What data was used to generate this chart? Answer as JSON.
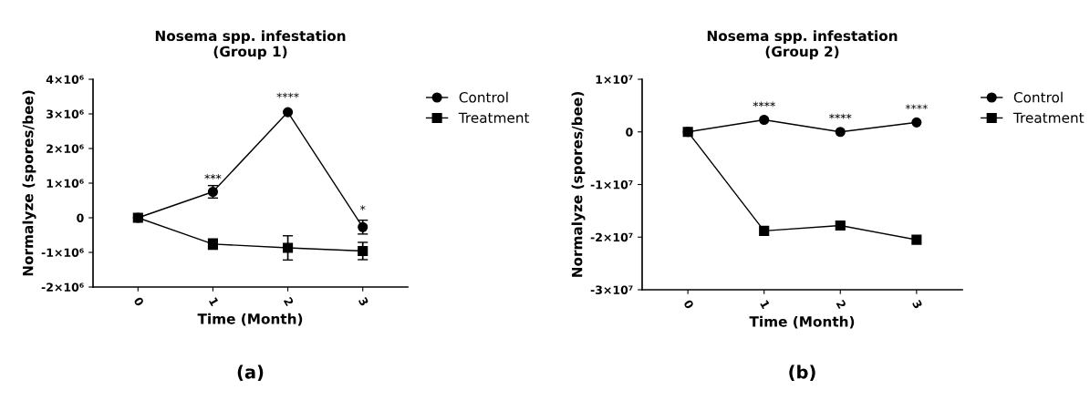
{
  "chart_data": [
    {
      "type": "line",
      "title": "Nosema spp. infestation\n(Group 1)",
      "xlabel": "Time (Month)",
      "ylabel": "Normalyze (spores/bee)",
      "categories": [
        "0",
        "1",
        "2",
        "3"
      ],
      "series": [
        {
          "name": "Control",
          "color": "#000000",
          "marker": "circle",
          "values": [
            0,
            750000,
            3050000,
            -270000
          ],
          "errors": [
            null,
            180000,
            null,
            200000
          ]
        },
        {
          "name": "Treatment",
          "color": "#000000",
          "marker": "square",
          "values": [
            0,
            -760000,
            -870000,
            -960000
          ],
          "errors": [
            null,
            150000,
            350000,
            250000
          ]
        }
      ],
      "ylim": [
        -2000000,
        4000000
      ],
      "yticks": [
        {
          "value": -2000000,
          "label": "-2×10⁶"
        },
        {
          "value": -1000000,
          "label": "-1×10⁶"
        },
        0,
        {
          "value": 1000000,
          "label": "1×10⁶"
        },
        {
          "value": 2000000,
          "label": "2×10⁶"
        },
        {
          "value": 3000000,
          "label": "3×10⁶"
        },
        {
          "value": 4000000,
          "label": "4×10⁶"
        }
      ],
      "legend": "top right",
      "grid": false,
      "line_style": "solid",
      "annotations": [
        {
          "text": "***",
          "x": "1",
          "y": 950000
        },
        {
          "text": "****",
          "x": "2",
          "y": 3300000
        },
        {
          "text": "*",
          "x": "3",
          "y": 50000
        },
        "(a)"
      ]
    },
    {
      "type": "line",
      "title": "Nosema spp. infestation\n(Group 2)",
      "xlabel": "Time (Month)",
      "ylabel": "Normalyze (spores/bee)",
      "categories": [
        "0",
        "1",
        "2",
        "3"
      ],
      "series": [
        {
          "name": "Control",
          "color": "#000000",
          "marker": "circle",
          "values": [
            0,
            2300000,
            0,
            1800000
          ]
        },
        {
          "name": "Treatment",
          "color": "#000000",
          "marker": "square",
          "values": [
            0,
            -18800000,
            -17800000,
            -20500000
          ]
        }
      ],
      "ylim": [
        -30000000,
        10000000
      ],
      "yticks": [
        {
          "value": -30000000,
          "label": "-3×10⁷"
        },
        {
          "value": -20000000,
          "label": "-2×10⁷"
        },
        {
          "value": -10000000,
          "label": "-1×10⁷"
        },
        0,
        {
          "value": 10000000,
          "label": "1×10⁷"
        }
      ],
      "legend": "top right",
      "grid": false,
      "line_style": "solid",
      "annotations": [
        {
          "text": "****",
          "x": "1",
          "y": 3700000
        },
        {
          "text": "****",
          "x": "2",
          "y": 1400000
        },
        {
          "text": "****",
          "x": "3",
          "y": 3200000
        },
        "(b)"
      ]
    }
  ]
}
